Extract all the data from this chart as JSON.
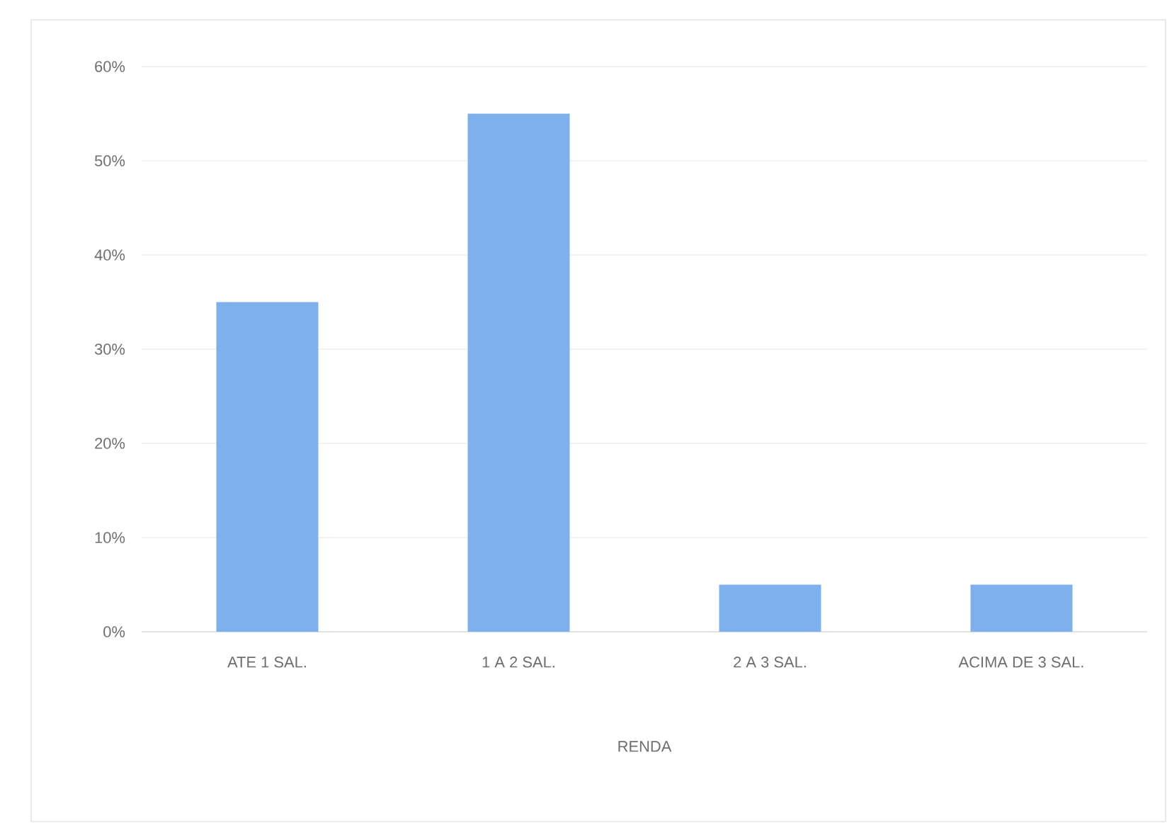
{
  "chart_data": {
    "type": "bar",
    "xlabel": "RENDA",
    "categories": [
      "ATE 1 SAL.",
      "1 A 2 SAL.",
      "2 A 3 SAL.",
      "ACIMA DE 3 SAL."
    ],
    "values": [
      35,
      55,
      5,
      5
    ],
    "color": "#7eb0ec",
    "ylim": [
      0,
      60
    ],
    "yticks": [
      {
        "value": 0,
        "label": "0%"
      },
      {
        "value": 10,
        "label": "10%"
      },
      {
        "value": 20,
        "label": "20%"
      },
      {
        "value": 30,
        "label": "30%"
      },
      {
        "value": 40,
        "label": "40%"
      },
      {
        "value": 50,
        "label": "50%"
      },
      {
        "value": 60,
        "label": "60%"
      }
    ],
    "grid": "y"
  }
}
